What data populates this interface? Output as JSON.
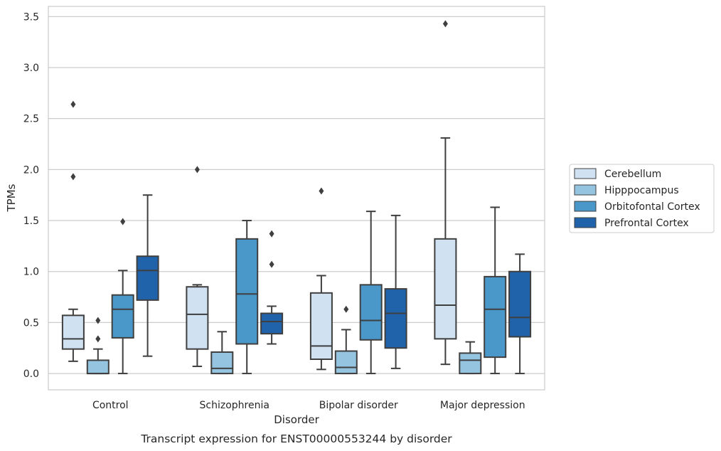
{
  "chart_data": {
    "type": "box",
    "caption": "Transcript expression for ENST00000553244 by disorder",
    "xlabel": "Disorder",
    "ylabel": "TPMs",
    "ylim": [
      -0.16,
      3.6
    ],
    "yticks": [
      0.0,
      0.5,
      1.0,
      1.5,
      2.0,
      2.5,
      3.0,
      3.5
    ],
    "ytick_labels": [
      "0.0",
      "0.5",
      "1.0",
      "1.5",
      "2.0",
      "2.5",
      "3.0",
      "3.5"
    ],
    "categories": [
      "Control",
      "Schizophrenia",
      "Bipolar disorder",
      "Major depression"
    ],
    "grid": true,
    "legend_position": "right",
    "series": [
      {
        "name": "Cerebellum",
        "color": "#d0e1f2",
        "boxes": [
          {
            "wlo": 0.12,
            "q1": 0.24,
            "median": 0.34,
            "q3": 0.57,
            "whi": 0.63,
            "outliers": [
              1.93,
              2.64
            ]
          },
          {
            "wlo": 0.07,
            "q1": 0.24,
            "median": 0.58,
            "q3": 0.85,
            "whi": 0.87,
            "outliers": [
              2.0
            ]
          },
          {
            "wlo": 0.04,
            "q1": 0.14,
            "median": 0.27,
            "q3": 0.79,
            "whi": 0.96,
            "outliers": [
              1.79
            ]
          },
          {
            "wlo": 0.09,
            "q1": 0.34,
            "median": 0.67,
            "q3": 1.32,
            "whi": 2.31,
            "outliers": [
              3.43
            ]
          }
        ]
      },
      {
        "name": "Hipppocampus",
        "color": "#94c4df",
        "boxes": [
          {
            "wlo": 0.0,
            "q1": 0.0,
            "median": 0.0,
            "q3": 0.13,
            "whi": 0.24,
            "outliers": [
              0.34,
              0.52
            ]
          },
          {
            "wlo": 0.0,
            "q1": 0.0,
            "median": 0.05,
            "q3": 0.21,
            "whi": 0.41,
            "outliers": []
          },
          {
            "wlo": 0.0,
            "q1": 0.0,
            "median": 0.06,
            "q3": 0.22,
            "whi": 0.43,
            "outliers": [
              0.63
            ]
          },
          {
            "wlo": 0.0,
            "q1": 0.0,
            "median": 0.13,
            "q3": 0.2,
            "whi": 0.31,
            "outliers": []
          }
        ]
      },
      {
        "name": "Orbitofontal Cortex",
        "color": "#4a98c9",
        "boxes": [
          {
            "wlo": 0.0,
            "q1": 0.35,
            "median": 0.63,
            "q3": 0.77,
            "whi": 1.01,
            "outliers": [
              1.49
            ]
          },
          {
            "wlo": 0.0,
            "q1": 0.29,
            "median": 0.78,
            "q3": 1.32,
            "whi": 1.5,
            "outliers": []
          },
          {
            "wlo": 0.0,
            "q1": 0.33,
            "median": 0.52,
            "q3": 0.87,
            "whi": 1.59,
            "outliers": []
          },
          {
            "wlo": 0.0,
            "q1": 0.16,
            "median": 0.63,
            "q3": 0.95,
            "whi": 1.63,
            "outliers": []
          }
        ]
      },
      {
        "name": "Prefrontal Cortex",
        "color": "#2163aa",
        "boxes": [
          {
            "wlo": 0.17,
            "q1": 0.72,
            "median": 1.01,
            "q3": 1.15,
            "whi": 1.75,
            "outliers": []
          },
          {
            "wlo": 0.29,
            "q1": 0.39,
            "median": 0.51,
            "q3": 0.59,
            "whi": 0.66,
            "outliers": [
              1.07,
              1.37
            ]
          },
          {
            "wlo": 0.05,
            "q1": 0.25,
            "median": 0.59,
            "q3": 0.83,
            "whi": 1.55,
            "outliers": []
          },
          {
            "wlo": 0.0,
            "q1": 0.36,
            "median": 0.55,
            "q3": 1.0,
            "whi": 1.17,
            "outliers": []
          }
        ]
      }
    ]
  }
}
